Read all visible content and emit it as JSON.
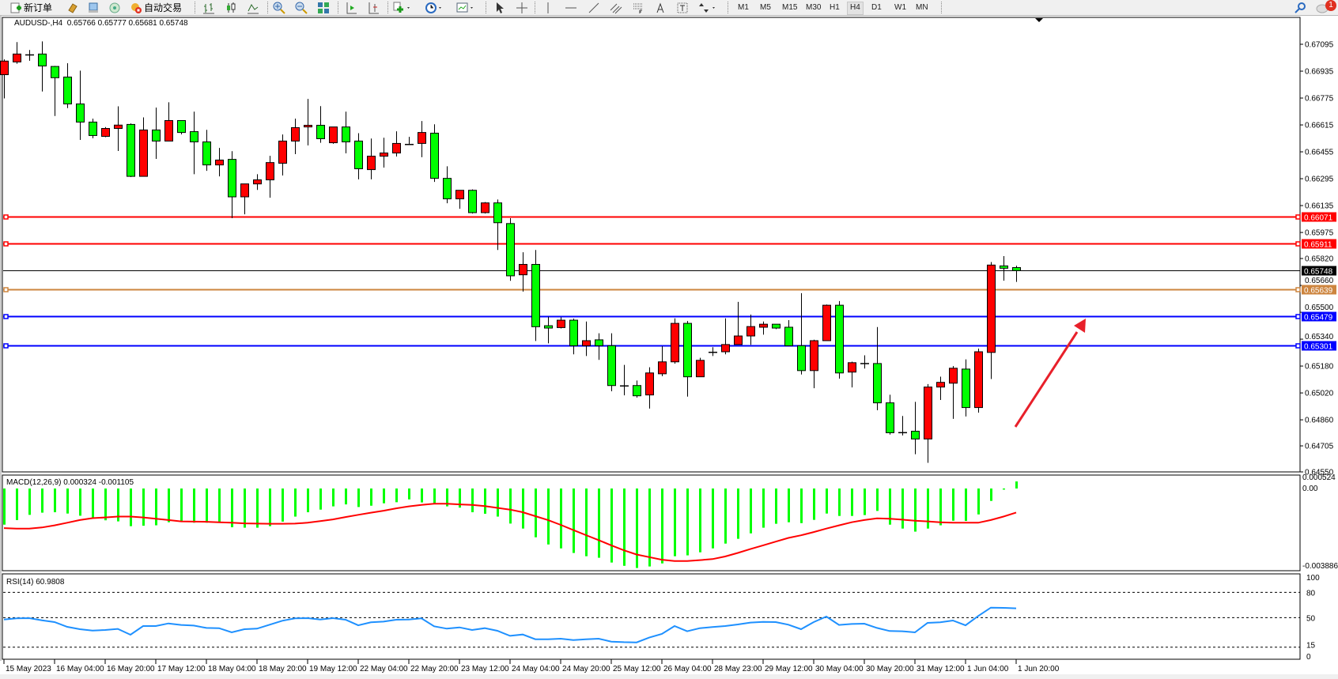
{
  "toolbar": {
    "new_order_label": "新订单",
    "autotrading_label": "自动交易",
    "timeframes": [
      "M1",
      "M5",
      "M15",
      "M30",
      "H1",
      "H4",
      "D1",
      "W1",
      "MN"
    ],
    "active_timeframe": "H4",
    "notification_count": "1"
  },
  "chart_header": {
    "symbol_label": "AUDUSD-,H4",
    "ohlc_text": "0.65766 0.65777 0.65681 0.65748"
  },
  "macd_header": "MACD(12,26,9) 0.000324 -0.001105",
  "rsi_header": "RSI(14) 60.9808",
  "colors": {
    "bull_candle": "#FF0000",
    "bear_candle": "#00FF00",
    "macd_histogram": "#00FF00",
    "macd_signal": "#FF0000",
    "rsi_line": "#1E90FF",
    "arrow": "#E8202A"
  },
  "price_axis_ticks": [
    "0.67095",
    "0.66935",
    "0.66775",
    "0.66615",
    "0.66455",
    "0.66295",
    "0.66135",
    "0.65975",
    "0.65820",
    "0.65660",
    "0.65500",
    "0.65340",
    "0.65180",
    "0.65020",
    "0.64860",
    "0.64705",
    "0.64550"
  ],
  "horizontal_lines": [
    {
      "price": 0.66071,
      "label": "0.66071",
      "color": "#FF0000"
    },
    {
      "price": 0.65911,
      "label": "0.65911",
      "color": "#FF0000"
    },
    {
      "price": 0.65748,
      "label": "0.65748",
      "color": "#000000",
      "current": true
    },
    {
      "price": 0.65639,
      "label": "0.65639",
      "color": "#CD853F"
    },
    {
      "price": 0.65479,
      "label": "0.65479",
      "color": "#0000FF"
    },
    {
      "price": 0.65301,
      "label": "0.65301",
      "color": "#0000FF"
    }
  ],
  "macd_axis_ticks": [
    "0.000524",
    "0.00",
    "-0.003886"
  ],
  "rsi_axis_ticks": [
    "100",
    "80",
    "50",
    "15",
    "0"
  ],
  "time_labels": [
    "15 May 2023",
    "16 May 04:00",
    "16 May 20:00",
    "17 May 12:00",
    "18 May 04:00",
    "18 May 20:00",
    "19 May 12:00",
    "22 May 04:00",
    "22 May 20:00",
    "23 May 12:00",
    "24 May 04:00",
    "24 May 20:00",
    "25 May 12:00",
    "26 May 04:00",
    "28 May 23:00",
    "29 May 12:00",
    "30 May 04:00",
    "30 May 20:00",
    "31 May 12:00",
    "1 Jun 04:00",
    "1 Jun 20:00"
  ],
  "chart_data": [
    {
      "type": "candlestick",
      "symbol": "AUDUSD-",
      "timeframe": "H4",
      "ylim": [
        0.6455,
        0.67255
      ],
      "ohlc_order": [
        "open",
        "high",
        "low",
        "close"
      ],
      "candles": [
        [
          0.66914,
          0.67005,
          0.66773,
          0.66995
        ],
        [
          0.6699,
          0.67108,
          0.66979,
          0.67037
        ],
        [
          0.67034,
          0.67061,
          0.66997,
          0.67034
        ],
        [
          0.67037,
          0.67112,
          0.66814,
          0.66966
        ],
        [
          0.66963,
          0.66966,
          0.66668,
          0.66896
        ],
        [
          0.669,
          0.66982,
          0.66715,
          0.6674
        ],
        [
          0.6674,
          0.66938,
          0.66526,
          0.66632
        ],
        [
          0.66632,
          0.66652,
          0.66536,
          0.66552
        ],
        [
          0.66547,
          0.66602,
          0.66542,
          0.66594
        ],
        [
          0.66594,
          0.66726,
          0.6646,
          0.66614
        ],
        [
          0.66618,
          0.66624,
          0.66305,
          0.66309
        ],
        [
          0.66309,
          0.6666,
          0.66309,
          0.66585
        ],
        [
          0.66585,
          0.66718,
          0.66413,
          0.66519
        ],
        [
          0.66519,
          0.6675,
          0.66519,
          0.66641
        ],
        [
          0.66641,
          0.66641,
          0.66559,
          0.6657
        ],
        [
          0.66575,
          0.66694,
          0.66322,
          0.66514
        ],
        [
          0.66514,
          0.66586,
          0.66342,
          0.66377
        ],
        [
          0.66377,
          0.66478,
          0.66309,
          0.66406
        ],
        [
          0.6641,
          0.66459,
          0.6606,
          0.66187
        ],
        [
          0.66187,
          0.66264,
          0.66083,
          0.66264
        ],
        [
          0.66264,
          0.66322,
          0.66228,
          0.66288
        ],
        [
          0.66288,
          0.66431,
          0.66182,
          0.66391
        ],
        [
          0.66387,
          0.66558,
          0.66314,
          0.66519
        ],
        [
          0.66519,
          0.66652,
          0.66441,
          0.66599
        ],
        [
          0.66603,
          0.6677,
          0.66493,
          0.66613
        ],
        [
          0.66613,
          0.66727,
          0.66509,
          0.66533
        ],
        [
          0.66509,
          0.66603,
          0.66503,
          0.66603
        ],
        [
          0.66603,
          0.66694,
          0.66446,
          0.66514
        ],
        [
          0.66519,
          0.66566,
          0.66291,
          0.66354
        ],
        [
          0.66349,
          0.66534,
          0.66291,
          0.66429
        ],
        [
          0.66429,
          0.66539,
          0.66361,
          0.66448
        ],
        [
          0.66448,
          0.66577,
          0.66427,
          0.66505
        ],
        [
          0.66501,
          0.66544,
          0.66498,
          0.66501
        ],
        [
          0.66505,
          0.66638,
          0.66423,
          0.6657
        ],
        [
          0.66566,
          0.66619,
          0.66276,
          0.66297
        ],
        [
          0.66297,
          0.66369,
          0.66149,
          0.66175
        ],
        [
          0.66175,
          0.66226,
          0.66116,
          0.66226
        ],
        [
          0.66226,
          0.66231,
          0.66088,
          0.66093
        ],
        [
          0.66093,
          0.66156,
          0.66088,
          0.66151
        ],
        [
          0.66151,
          0.66171,
          0.65871,
          0.66033
        ],
        [
          0.66028,
          0.6606,
          0.65687,
          0.65717
        ],
        [
          0.65723,
          0.65857,
          0.65623,
          0.65785
        ],
        [
          0.65785,
          0.65871,
          0.65329,
          0.65414
        ],
        [
          0.6542,
          0.65473,
          0.65315,
          0.65406
        ],
        [
          0.65409,
          0.6547,
          0.65404,
          0.65453
        ],
        [
          0.65453,
          0.65462,
          0.6525,
          0.65301
        ],
        [
          0.65301,
          0.65445,
          0.6524,
          0.65331
        ],
        [
          0.65336,
          0.65375,
          0.65217,
          0.65301
        ],
        [
          0.65301,
          0.65375,
          0.6503,
          0.65064
        ],
        [
          0.65064,
          0.65187,
          0.65006,
          0.65064
        ],
        [
          0.65064,
          0.65094,
          0.64992,
          0.65003
        ],
        [
          0.65008,
          0.65173,
          0.64927,
          0.65139
        ],
        [
          0.65134,
          0.65298,
          0.6512,
          0.65205
        ],
        [
          0.65205,
          0.65464,
          0.65194,
          0.65434
        ],
        [
          0.65434,
          0.65448,
          0.64998,
          0.65116
        ],
        [
          0.65116,
          0.65229,
          0.65116,
          0.65214
        ],
        [
          0.65264,
          0.65292,
          0.6524,
          0.65264
        ],
        [
          0.65265,
          0.65464,
          0.6525,
          0.65308
        ],
        [
          0.65308,
          0.65562,
          0.65308,
          0.65359
        ],
        [
          0.65359,
          0.65486,
          0.65306,
          0.65415
        ],
        [
          0.65411,
          0.65445,
          0.65367,
          0.65429
        ],
        [
          0.65429,
          0.65429,
          0.654,
          0.65406
        ],
        [
          0.65411,
          0.65453,
          0.65301,
          0.65301
        ],
        [
          0.65301,
          0.65614,
          0.6513,
          0.65153
        ],
        [
          0.65153,
          0.65337,
          0.65048,
          0.65331
        ],
        [
          0.65331,
          0.65546,
          0.65331,
          0.65542
        ],
        [
          0.65542,
          0.65567,
          0.65105,
          0.65139
        ],
        [
          0.65144,
          0.65206,
          0.65053,
          0.652
        ],
        [
          0.65197,
          0.65244,
          0.65165,
          0.65197
        ],
        [
          0.65195,
          0.65412,
          0.64917,
          0.64961
        ],
        [
          0.64961,
          0.65009,
          0.64772,
          0.64783
        ],
        [
          0.64786,
          0.64883,
          0.64767,
          0.64786
        ],
        [
          0.64792,
          0.64967,
          0.64655,
          0.64746
        ],
        [
          0.64746,
          0.65073,
          0.64604,
          0.65055
        ],
        [
          0.65055,
          0.65117,
          0.64978,
          0.65083
        ],
        [
          0.65078,
          0.6518,
          0.64866,
          0.65167
        ],
        [
          0.65162,
          0.6522,
          0.6488,
          0.64933
        ],
        [
          0.64933,
          0.65284,
          0.64903,
          0.65265
        ],
        [
          0.65261,
          0.65799,
          0.65103,
          0.65781
        ],
        [
          0.65776,
          0.65834,
          0.65688,
          0.65762
        ],
        [
          0.65766,
          0.65777,
          0.65681,
          0.65748
        ]
      ],
      "annotation": {
        "type": "arrow",
        "color": "#E8202A",
        "direction": "up-right"
      }
    },
    {
      "type": "bar",
      "name": "MACD(12,26,9)",
      "ylim": [
        -0.003886,
        0.000524
      ],
      "histogram": [
        -0.00166,
        -0.00145,
        -0.00121,
        -0.00111,
        -0.00109,
        -0.00115,
        -0.00125,
        -0.00133,
        -0.00146,
        -0.00151,
        -0.00173,
        -0.00171,
        -0.00169,
        -0.00155,
        -0.00154,
        -0.00157,
        -0.00157,
        -0.00157,
        -0.00178,
        -0.0018,
        -0.0018,
        -0.00173,
        -0.00152,
        -0.00129,
        -0.00109,
        -0.00097,
        -0.00082,
        -0.00073,
        -0.00085,
        -0.00079,
        -0.00068,
        -0.00063,
        -0.0005,
        -0.00064,
        -0.00069,
        -0.00082,
        -0.00088,
        -0.00109,
        -0.00116,
        -0.00129,
        -0.00161,
        -0.00184,
        -0.00224,
        -0.00257,
        -0.00275,
        -0.00296,
        -0.00311,
        -0.00318,
        -0.0034,
        -0.00355,
        -0.00365,
        -0.00358,
        -0.00344,
        -0.00311,
        -0.00307,
        -0.00293,
        -0.00275,
        -0.00253,
        -0.00231,
        -0.00206,
        -0.0018,
        -0.00162,
        -0.00155,
        -0.00159,
        -0.00144,
        -0.00115,
        -0.00126,
        -0.00126,
        -0.00122,
        -0.00103,
        -0.00166,
        -0.00184,
        -0.00198,
        -0.00184,
        -0.00169,
        -0.00148,
        -0.00149,
        -0.00119,
        -0.00057,
        -5e-05,
        0.000324
      ],
      "signal": [
        -0.00182,
        -0.00184,
        -0.00184,
        -0.00179,
        -0.00169,
        -0.00157,
        -0.00145,
        -0.00136,
        -0.00133,
        -0.00129,
        -0.00129,
        -0.00133,
        -0.00139,
        -0.00145,
        -0.00151,
        -0.00152,
        -0.00153,
        -0.00155,
        -0.00157,
        -0.0016,
        -0.00161,
        -0.00162,
        -0.00162,
        -0.00161,
        -0.00157,
        -0.0015,
        -0.00142,
        -0.00131,
        -0.00121,
        -0.00111,
        -0.00102,
        -0.00091,
        -0.00082,
        -0.00075,
        -0.0007,
        -0.0007,
        -0.00073,
        -0.00075,
        -0.00081,
        -0.00089,
        -0.00097,
        -0.00109,
        -0.00127,
        -0.00145,
        -0.00167,
        -0.00191,
        -0.00214,
        -0.00237,
        -0.00261,
        -0.00284,
        -0.00303,
        -0.00315,
        -0.00327,
        -0.00333,
        -0.00333,
        -0.00329,
        -0.00324,
        -0.00312,
        -0.00296,
        -0.00278,
        -0.00261,
        -0.00244,
        -0.00227,
        -0.00215,
        -0.002,
        -0.00184,
        -0.00169,
        -0.00155,
        -0.00145,
        -0.00137,
        -0.00139,
        -0.00143,
        -0.00148,
        -0.00151,
        -0.00155,
        -0.00157,
        -0.00157,
        -0.00157,
        -0.00145,
        -0.00129,
        -0.001105
      ]
    },
    {
      "type": "line",
      "name": "RSI(14)",
      "ylim": [
        0,
        100
      ],
      "levels": [
        80,
        50,
        15
      ],
      "values": [
        47.8,
        49.1,
        49.4,
        46.9,
        44.7,
        39.1,
        36.3,
        34.7,
        35.3,
        36.6,
        29.7,
        40.0,
        40.0,
        43.1,
        41.3,
        40.6,
        37.8,
        37.5,
        32.5,
        36.3,
        36.9,
        41.6,
        46.3,
        49.1,
        49.4,
        47.8,
        49.4,
        47.5,
        40.9,
        44.4,
        45.3,
        47.5,
        47.8,
        49.1,
        39.7,
        36.9,
        38.4,
        35.3,
        37.5,
        34.4,
        28.4,
        30.0,
        24.4,
        24.4,
        25.0,
        23.4,
        24.4,
        25.0,
        21.6,
        20.9,
        20.6,
        26.3,
        30.6,
        40.0,
        33.8,
        37.5,
        38.8,
        40.0,
        41.9,
        44.1,
        45.0,
        44.7,
        41.6,
        36.3,
        44.7,
        51.3,
        41.3,
        42.5,
        42.8,
        37.8,
        34.1,
        33.8,
        32.5,
        43.8,
        44.4,
        46.6,
        40.9,
        51.9,
        61.9,
        61.6,
        60.98
      ]
    }
  ]
}
